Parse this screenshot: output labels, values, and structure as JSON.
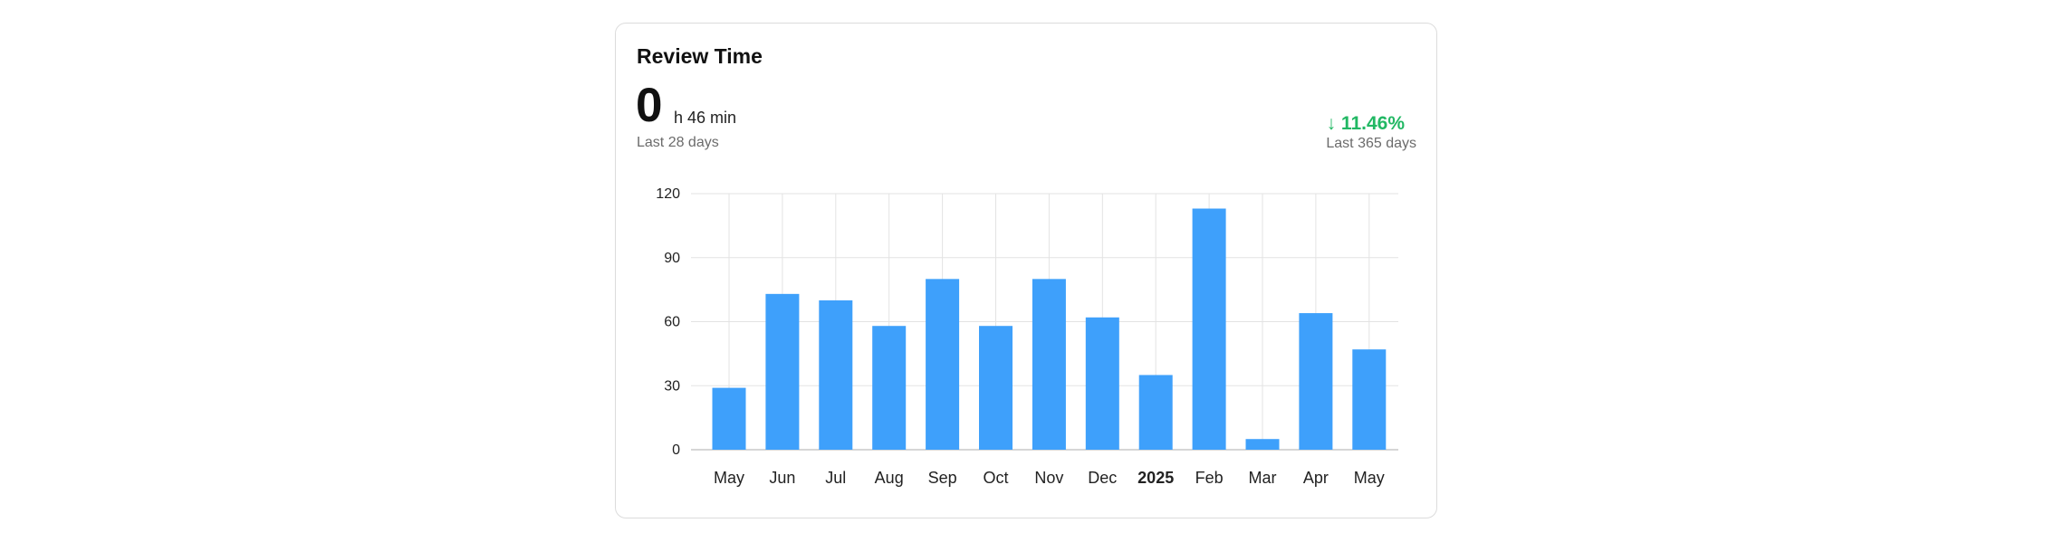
{
  "card": {
    "title": "Review Time",
    "value": "0",
    "value_unit": "h 46 min",
    "period_left": "Last 28 days",
    "change": "↓ 11.46%",
    "period_right": "Last 365 days"
  },
  "colors": {
    "bar": "#3ea0fb",
    "change": "#22b864"
  },
  "chart_data": {
    "type": "bar",
    "categories": [
      "May",
      "Jun",
      "Jul",
      "Aug",
      "Sep",
      "Oct",
      "Nov",
      "Dec",
      "2025",
      "Feb",
      "Mar",
      "Apr",
      "May"
    ],
    "bold_categories": [
      "2025"
    ],
    "values": [
      29,
      73,
      70,
      58,
      80,
      58,
      80,
      62,
      35,
      113,
      5,
      64,
      47
    ],
    "yticks": [
      0,
      30,
      60,
      90,
      120
    ],
    "ylim": [
      0,
      120
    ],
    "grid": true
  }
}
